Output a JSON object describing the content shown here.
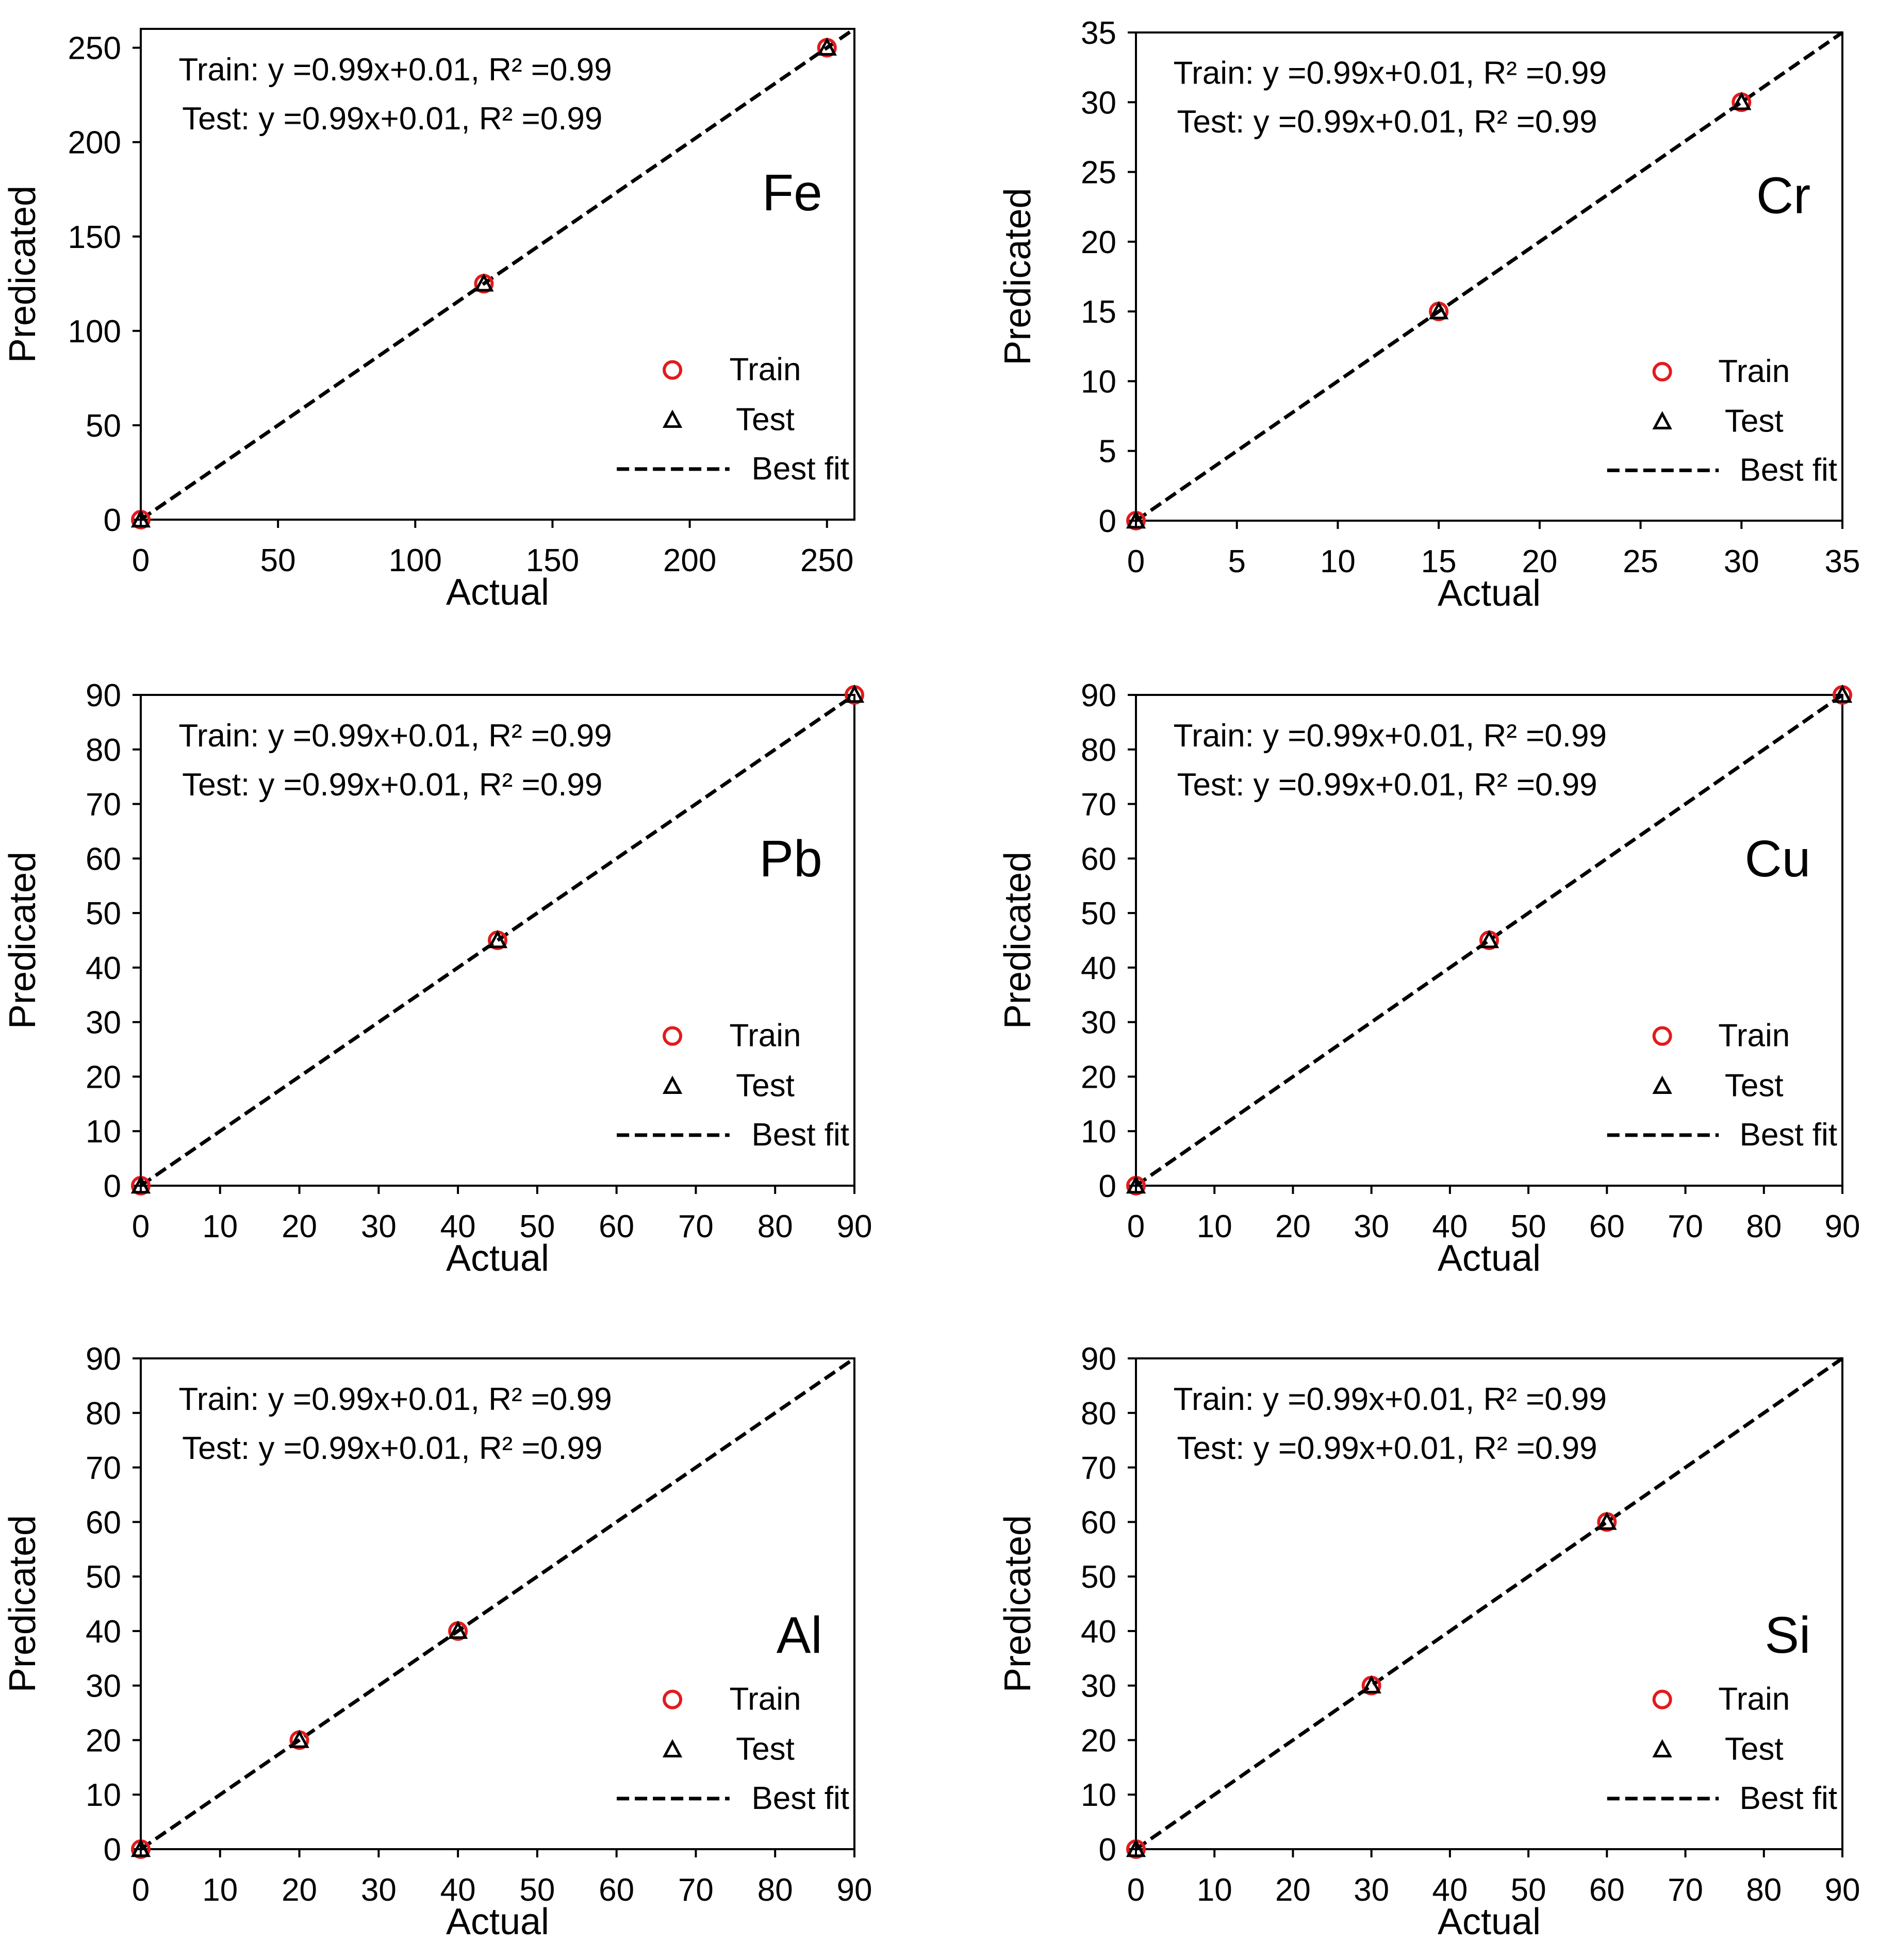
{
  "chart_data": [
    {
      "type": "scatter",
      "element": "Fe",
      "xlabel": "Actual",
      "ylabel": "Predicated",
      "xlim": [
        0,
        260
      ],
      "ylim": [
        0,
        260
      ],
      "xticks": [
        0,
        50,
        100,
        150,
        200,
        250
      ],
      "yticks": [
        0,
        50,
        100,
        150,
        200,
        250
      ],
      "equations": [
        "Train: y =0.99x+0.01, R² =0.99",
        "Test:  y =0.99x+0.01, R² =0.99"
      ],
      "series": [
        {
          "name": "Train",
          "x": [
            0,
            125,
            250
          ],
          "y": [
            0,
            125,
            250
          ]
        },
        {
          "name": "Test",
          "x": [
            0,
            125,
            250
          ],
          "y": [
            0,
            125,
            250
          ]
        }
      ],
      "fit_label": "Best fit"
    },
    {
      "type": "scatter",
      "element": "Cr",
      "xlabel": "Actual",
      "ylabel": "Predicated",
      "xlim": [
        0,
        35
      ],
      "ylim": [
        0,
        35
      ],
      "xticks": [
        0,
        5,
        10,
        15,
        20,
        25,
        30,
        35
      ],
      "yticks": [
        0,
        5,
        10,
        15,
        20,
        25,
        30,
        35
      ],
      "equations": [
        "Train: y =0.99x+0.01, R² =0.99",
        "Test:  y =0.99x+0.01, R² =0.99"
      ],
      "series": [
        {
          "name": "Train",
          "x": [
            0,
            15,
            30
          ],
          "y": [
            0,
            15,
            30
          ]
        },
        {
          "name": "Test",
          "x": [
            0,
            15,
            30
          ],
          "y": [
            0,
            15,
            30
          ]
        }
      ],
      "fit_label": "Best fit"
    },
    {
      "type": "scatter",
      "element": "Pb",
      "xlabel": "Actual",
      "ylabel": "Predicated",
      "xlim": [
        0,
        90
      ],
      "ylim": [
        0,
        90
      ],
      "xticks": [
        0,
        10,
        20,
        30,
        40,
        50,
        60,
        70,
        80,
        90
      ],
      "yticks": [
        0,
        10,
        20,
        30,
        40,
        50,
        60,
        70,
        80,
        90
      ],
      "equations": [
        "Train: y =0.99x+0.01, R² =0.99",
        "Test:  y =0.99x+0.01, R² =0.99"
      ],
      "series": [
        {
          "name": "Train",
          "x": [
            0,
            45,
            90
          ],
          "y": [
            0,
            45,
            90
          ]
        },
        {
          "name": "Test",
          "x": [
            0,
            45,
            90
          ],
          "y": [
            0,
            45,
            90
          ]
        }
      ],
      "fit_label": "Best fit"
    },
    {
      "type": "scatter",
      "element": "Cu",
      "xlabel": "Actual",
      "ylabel": "Predicated",
      "xlim": [
        0,
        90
      ],
      "ylim": [
        0,
        90
      ],
      "xticks": [
        0,
        10,
        20,
        30,
        40,
        50,
        60,
        70,
        80,
        90
      ],
      "yticks": [
        0,
        10,
        20,
        30,
        40,
        50,
        60,
        70,
        80,
        90
      ],
      "equations": [
        "Train: y =0.99x+0.01, R² =0.99",
        "Test:  y =0.99x+0.01, R² =0.99"
      ],
      "series": [
        {
          "name": "Train",
          "x": [
            0,
            45,
            90
          ],
          "y": [
            0,
            45,
            90
          ]
        },
        {
          "name": "Test",
          "x": [
            0,
            45,
            90
          ],
          "y": [
            0,
            45,
            90
          ]
        }
      ],
      "fit_label": "Best fit"
    },
    {
      "type": "scatter",
      "element": "Al",
      "xlabel": "Actual",
      "ylabel": "Predicated",
      "xlim": [
        0,
        90
      ],
      "ylim": [
        0,
        90
      ],
      "xticks": [
        0,
        10,
        20,
        30,
        40,
        50,
        60,
        70,
        80,
        90
      ],
      "yticks": [
        0,
        10,
        20,
        30,
        40,
        50,
        60,
        70,
        80,
        90
      ],
      "equations": [
        "Train: y =0.99x+0.01, R² =0.99",
        "Test:  y =0.99x+0.01, R² =0.99"
      ],
      "series": [
        {
          "name": "Train",
          "x": [
            0,
            20,
            40
          ],
          "y": [
            0,
            20,
            40
          ]
        },
        {
          "name": "Test",
          "x": [
            0,
            20,
            40
          ],
          "y": [
            0,
            20,
            40
          ]
        }
      ],
      "fit_label": "Best fit"
    },
    {
      "type": "scatter",
      "element": "Si",
      "xlabel": "Actual",
      "ylabel": "Predicated",
      "xlim": [
        0,
        90
      ],
      "ylim": [
        0,
        90
      ],
      "xticks": [
        0,
        10,
        20,
        30,
        40,
        50,
        60,
        70,
        80,
        90
      ],
      "yticks": [
        0,
        10,
        20,
        30,
        40,
        50,
        60,
        70,
        80,
        90
      ],
      "equations": [
        "Train: y =0.99x+0.01, R² =0.99",
        "Test:  y =0.99x+0.01, R² =0.99"
      ],
      "series": [
        {
          "name": "Train",
          "x": [
            0,
            30,
            60
          ],
          "y": [
            0,
            30,
            60
          ]
        },
        {
          "name": "Test",
          "x": [
            0,
            30,
            60
          ],
          "y": [
            0,
            30,
            60
          ]
        }
      ],
      "fit_label": "Best fit"
    }
  ],
  "colors": {
    "train_marker": "#e31a1c",
    "test_marker": "#000000",
    "fit_line": "#000000",
    "axis": "#000000"
  }
}
